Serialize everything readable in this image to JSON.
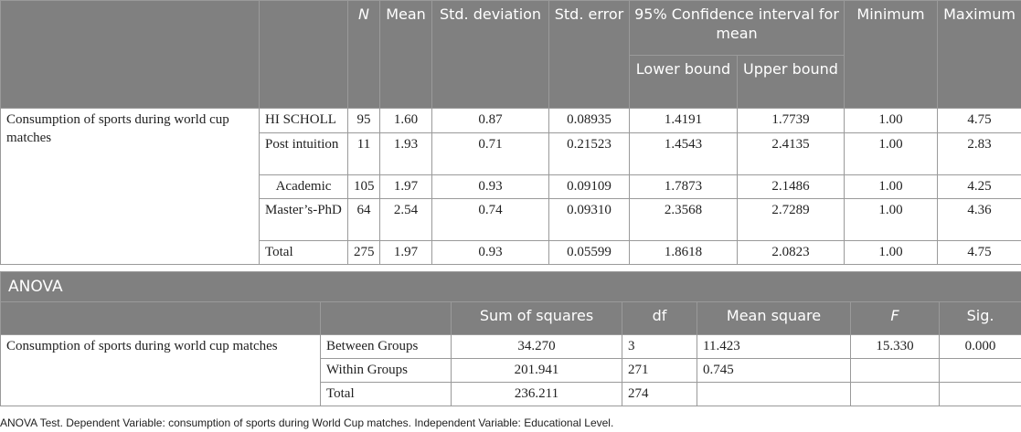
{
  "descriptives": {
    "headers": {
      "n": "N",
      "mean": "Mean",
      "std_dev": "Std. deviation",
      "std_err": "Std. error",
      "ci": "95% Confidence interval for mean",
      "lower": "Lower bound",
      "upper": "Upper bound",
      "min": "Minimum",
      "max": "Maximum"
    },
    "dependent": "Consumption of sports during world cup matches",
    "rows": [
      {
        "group": "HI SCHOLL",
        "n": "95",
        "mean": "1.60",
        "sd": "0.87",
        "se": "0.08935",
        "lower": "1.4191",
        "upper": "1.7739",
        "min": "1.00",
        "max": "4.75"
      },
      {
        "group": "Post intuition",
        "n": "11",
        "mean": "1.93",
        "sd": "0.71",
        "se": "0.21523",
        "lower": "1.4543",
        "upper": "2.4135",
        "min": "1.00",
        "max": "2.83"
      },
      {
        "group": "Academic",
        "n": "105",
        "mean": "1.97",
        "sd": "0.93",
        "se": "0.09109",
        "lower": "1.7873",
        "upper": "2.1486",
        "min": "1.00",
        "max": "4.25"
      },
      {
        "group": "Master’s-PhD",
        "n": "64",
        "mean": "2.54",
        "sd": "0.74",
        "se": "0.09310",
        "lower": "2.3568",
        "upper": "2.7289",
        "min": "1.00",
        "max": "4.36"
      },
      {
        "group": "Total",
        "n": "275",
        "mean": "1.97",
        "sd": "0.93",
        "se": "0.05599",
        "lower": "1.8618",
        "upper": "2.0823",
        "min": "1.00",
        "max": "4.75"
      }
    ]
  },
  "anova": {
    "title": "ANOVA",
    "headers": {
      "ss": "Sum of squares",
      "df": "df",
      "ms": "Mean square",
      "f": "F",
      "sig": "Sig."
    },
    "dependent": "Consumption of sports during world cup matches",
    "rows": [
      {
        "source": "Between Groups",
        "ss": "34.270",
        "df": "3",
        "ms": "11.423",
        "f": "15.330",
        "sig": "0.000"
      },
      {
        "source": "Within Groups",
        "ss": "201.941",
        "df": "271",
        "ms": "0.745",
        "f": "",
        "sig": ""
      },
      {
        "source": "Total",
        "ss": "236.211",
        "df": "274",
        "ms": "",
        "f": "",
        "sig": ""
      }
    ]
  },
  "footnote": "ANOVA Test. Dependent Variable: consumption of sports during World Cup matches. Independent Variable: Educational Level."
}
